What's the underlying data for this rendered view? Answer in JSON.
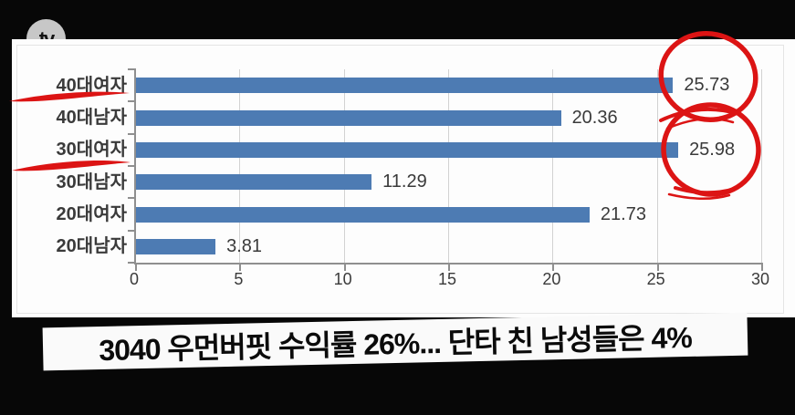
{
  "logo": {
    "text": "tv"
  },
  "chart_data": {
    "type": "bar",
    "orientation": "horizontal",
    "title": "",
    "categories": [
      "40대여자",
      "40대남자",
      "30대여자",
      "30대남자",
      "20대여자",
      "20대남자"
    ],
    "values": [
      25.73,
      20.36,
      25.98,
      11.29,
      21.73,
      3.81
    ],
    "value_labels": [
      "25.73",
      "20.36",
      "25.98",
      "11.29",
      "21.73",
      "3.81"
    ],
    "x_ticks": [
      "0",
      "5",
      "10",
      "15",
      "20",
      "25",
      "30"
    ],
    "xlim": [
      0,
      30
    ],
    "grid": true,
    "bar_color": "#4d7bb3",
    "gridline_color": "#d2d2d2",
    "axis_color": "#8f8f8f",
    "label_color": "#3a3a3a",
    "annotations": {
      "marker_color": "#dc1414",
      "underlined_categories": [
        "40대여자",
        "30대여자"
      ],
      "circled_values": [
        "25.73",
        "25.98"
      ]
    }
  },
  "caption": {
    "text": "3040 우먼버핏 수익률 26%... 단타 친 남성들은 4%"
  }
}
